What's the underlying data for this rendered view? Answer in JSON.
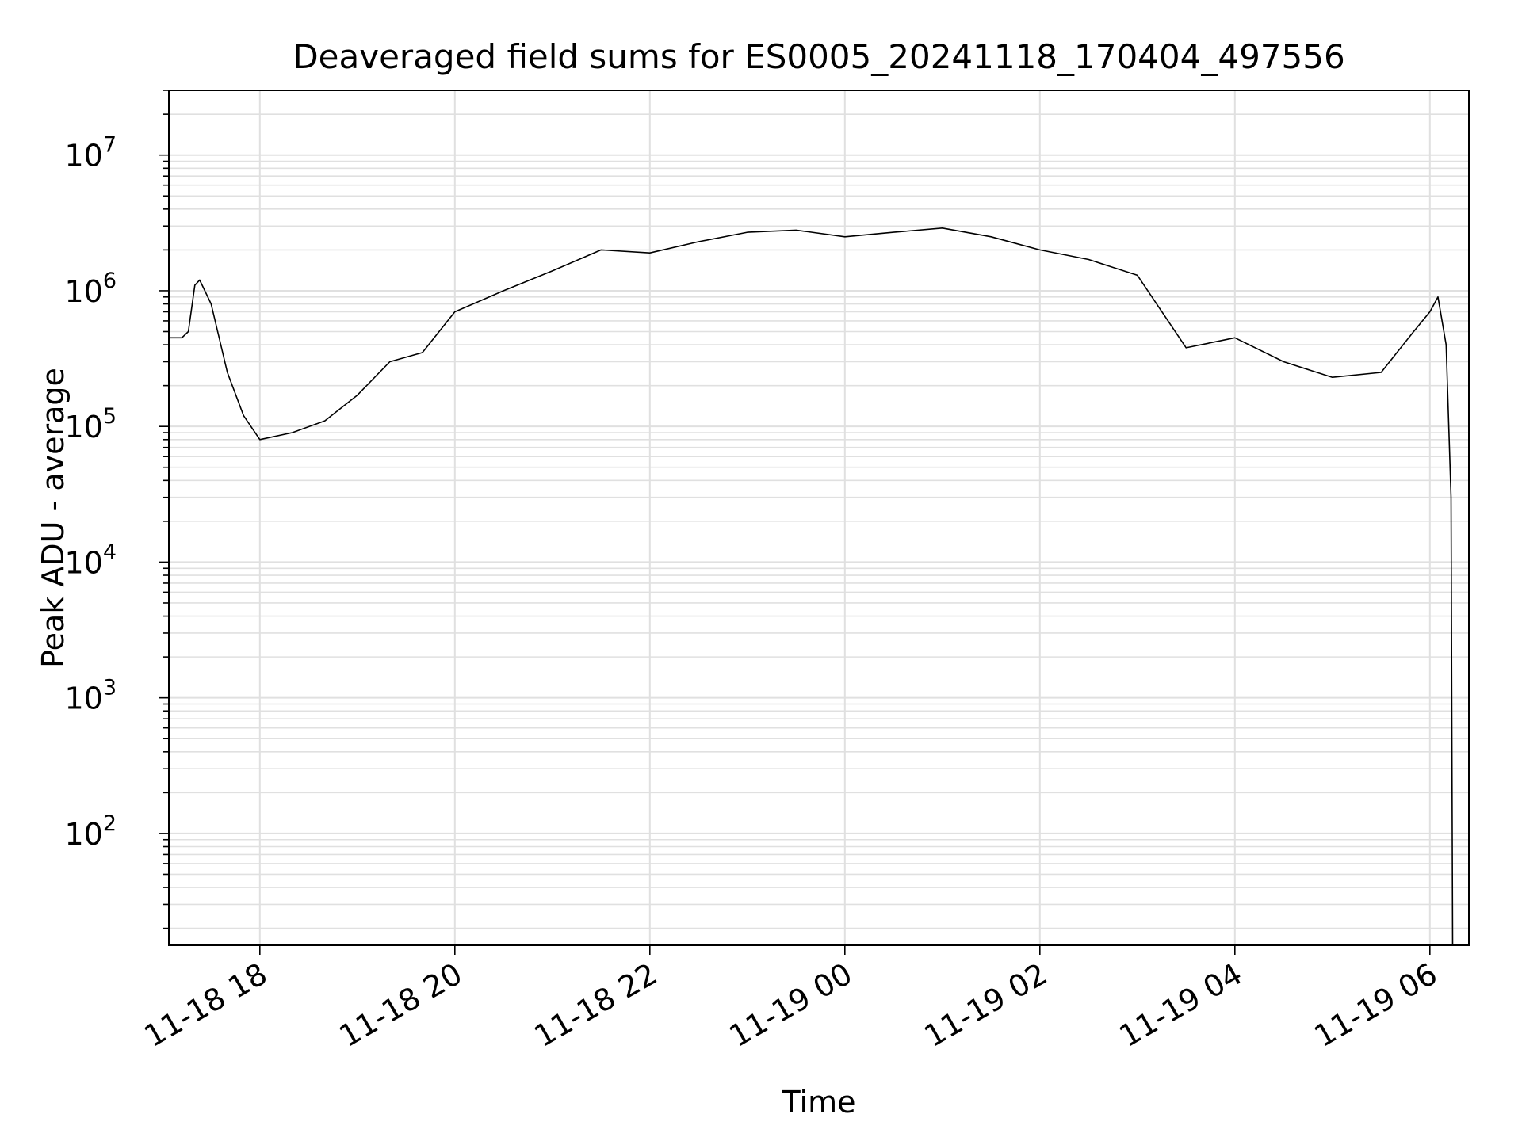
{
  "chart_data": {
    "type": "line",
    "title": "Deaveraged field sums for ES0005_20241118_170404_497556",
    "xlabel": "Time",
    "ylabel": "Peak ADU - average",
    "yscale": "log",
    "ylim": [
      15,
      30000000
    ],
    "xlim": [
      "2024-11-18 17:04",
      "2024-11-19 06:24"
    ],
    "grid": true,
    "legend": "none",
    "line_color": "#000000",
    "grid_color": "#e0e0e0",
    "x_ticks": [
      {
        "label": "11-18 18",
        "time": "2024-11-18 18:00"
      },
      {
        "label": "11-18 20",
        "time": "2024-11-18 20:00"
      },
      {
        "label": "11-18 22",
        "time": "2024-11-18 22:00"
      },
      {
        "label": "11-19 00",
        "time": "2024-11-19 00:00"
      },
      {
        "label": "11-19 02",
        "time": "2024-11-19 02:00"
      },
      {
        "label": "11-19 04",
        "time": "2024-11-19 04:00"
      },
      {
        "label": "11-19 06",
        "time": "2024-11-19 06:00"
      }
    ],
    "y_ticks": [
      {
        "base": "10",
        "exp": "2",
        "value": 100
      },
      {
        "base": "10",
        "exp": "3",
        "value": 1000
      },
      {
        "base": "10",
        "exp": "4",
        "value": 10000
      },
      {
        "base": "10",
        "exp": "5",
        "value": 100000
      },
      {
        "base": "10",
        "exp": "6",
        "value": 1000000
      },
      {
        "base": "10",
        "exp": "7",
        "value": 10000000
      }
    ],
    "series": [
      {
        "x": [
          "2024-11-18 17:04",
          "2024-11-18 17:12",
          "2024-11-18 17:16",
          "2024-11-18 17:20",
          "2024-11-18 17:23",
          "2024-11-18 17:30",
          "2024-11-18 17:40",
          "2024-11-18 17:50",
          "2024-11-18 18:00",
          "2024-11-18 18:20",
          "2024-11-18 18:40",
          "2024-11-18 19:00",
          "2024-11-18 19:20",
          "2024-11-18 19:40",
          "2024-11-18 20:00",
          "2024-11-18 20:30",
          "2024-11-18 21:00",
          "2024-11-18 21:30",
          "2024-11-18 22:00",
          "2024-11-18 22:30",
          "2024-11-18 23:00",
          "2024-11-18 23:30",
          "2024-11-19 00:00",
          "2024-11-19 00:30",
          "2024-11-19 01:00",
          "2024-11-19 01:30",
          "2024-11-19 02:00",
          "2024-11-19 02:30",
          "2024-11-19 03:00",
          "2024-11-19 03:30",
          "2024-11-19 04:00",
          "2024-11-19 04:30",
          "2024-11-19 05:00",
          "2024-11-19 05:30",
          "2024-11-19 05:50",
          "2024-11-19 06:00",
          "2024-11-19 06:05",
          "2024-11-19 06:10",
          "2024-11-19 06:13",
          "2024-11-19 06:14"
        ],
        "y": [
          450000,
          450000,
          500000,
          1100000,
          1200000,
          800000,
          250000,
          120000,
          80000,
          90000,
          110000,
          170000,
          300000,
          350000,
          700000,
          1000000,
          1400000,
          2000000,
          1900000,
          2300000,
          2700000,
          2800000,
          2500000,
          2700000,
          2900000,
          2500000,
          2000000,
          1700000,
          1300000,
          380000,
          450000,
          300000,
          230000,
          250000,
          500000,
          700000,
          900000,
          400000,
          30000,
          15
        ]
      }
    ]
  }
}
